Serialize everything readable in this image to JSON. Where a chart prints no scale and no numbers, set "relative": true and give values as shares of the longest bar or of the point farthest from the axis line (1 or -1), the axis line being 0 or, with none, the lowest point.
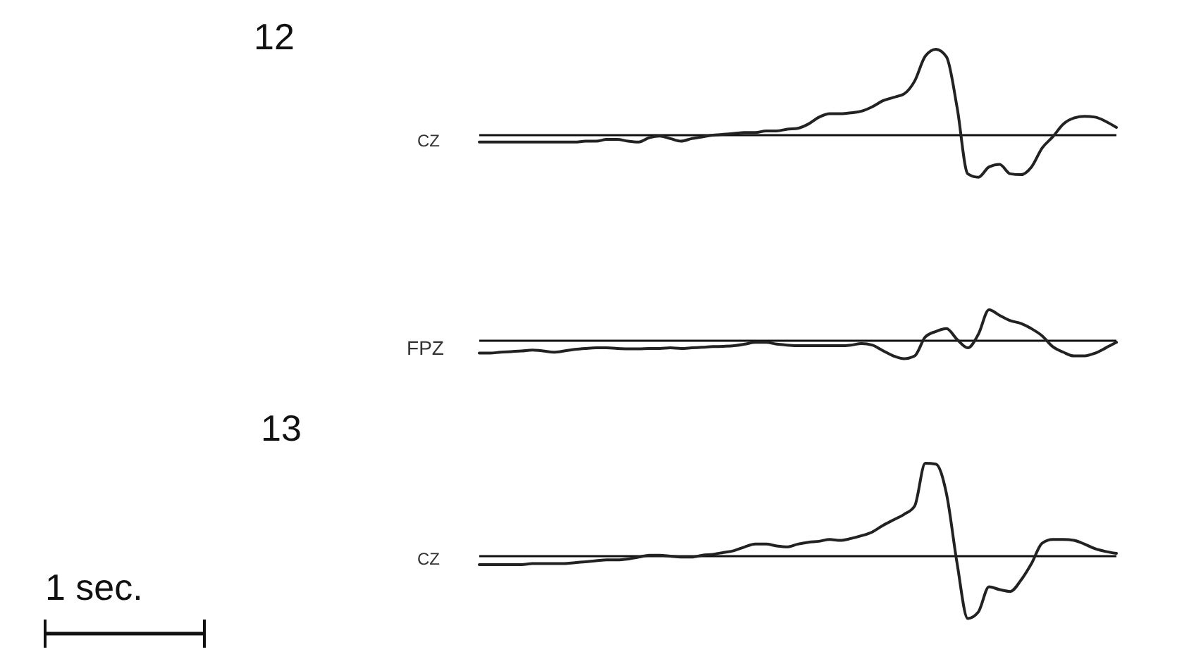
{
  "chart_data": [
    {
      "type": "line",
      "title": "12",
      "ylabel": "CZ",
      "relative": true,
      "color": "#222222",
      "categories": [
        null,
        null,
        null,
        null,
        null,
        null,
        null,
        null,
        null,
        null,
        null,
        null,
        null,
        null,
        null,
        null,
        null,
        null,
        null,
        null,
        null,
        null,
        null,
        null,
        null,
        null,
        null,
        null,
        null,
        null,
        null,
        null,
        null,
        null,
        null,
        null,
        null,
        null,
        null,
        null,
        null,
        null,
        null,
        null,
        null,
        null,
        null,
        null,
        null,
        null,
        null,
        null,
        null,
        null,
        null,
        null,
        null,
        null,
        null,
        null,
        null
      ],
      "values": [
        -0.08,
        -0.08,
        -0.08,
        -0.08,
        -0.08,
        -0.08,
        -0.08,
        -0.08,
        -0.08,
        -0.08,
        -0.07,
        -0.07,
        -0.05,
        -0.05,
        -0.07,
        -0.08,
        -0.03,
        -0.01,
        -0.04,
        -0.07,
        -0.04,
        -0.02,
        0,
        0.01,
        0.02,
        0.03,
        0.03,
        0.05,
        0.05,
        0.07,
        0.08,
        0.13,
        0.21,
        0.25,
        0.25,
        0.26,
        0.28,
        0.33,
        0.4,
        0.44,
        0.48,
        0.63,
        0.92,
        1,
        0.91,
        0.32,
        -0.45,
        -0.49,
        -0.37,
        -0.34,
        -0.45,
        -0.46,
        -0.37,
        -0.15,
        -0.02,
        0.13,
        0.2,
        0.22,
        0.21,
        0.16,
        0.09
      ]
    },
    {
      "type": "line",
      "ylabel": "FPZ",
      "relative": true,
      "color": "#222222",
      "categories": [
        null,
        null,
        null,
        null,
        null,
        null,
        null,
        null,
        null,
        null,
        null,
        null,
        null,
        null,
        null,
        null,
        null,
        null,
        null,
        null,
        null,
        null,
        null,
        null,
        null,
        null,
        null,
        null,
        null,
        null,
        null,
        null,
        null,
        null,
        null,
        null,
        null,
        null,
        null,
        null,
        null,
        null,
        null,
        null,
        null,
        null,
        null,
        null,
        null,
        null,
        null,
        null,
        null,
        null,
        null,
        null,
        null,
        null,
        null,
        null,
        null
      ],
      "values": [
        -0.4,
        -0.4,
        -0.37,
        -0.35,
        -0.33,
        -0.3,
        -0.33,
        -0.37,
        -0.33,
        -0.28,
        -0.25,
        -0.23,
        -0.23,
        -0.25,
        -0.26,
        -0.26,
        -0.25,
        -0.25,
        -0.23,
        -0.25,
        -0.23,
        -0.21,
        -0.19,
        -0.18,
        -0.16,
        -0.11,
        -0.05,
        -0.05,
        -0.11,
        -0.14,
        -0.16,
        -0.16,
        -0.16,
        -0.16,
        -0.16,
        -0.14,
        -0.09,
        -0.14,
        -0.32,
        -0.49,
        -0.58,
        -0.49,
        0.12,
        0.3,
        0.39,
        0.04,
        -0.23,
        0.21,
        1,
        0.82,
        0.65,
        0.56,
        0.39,
        0.16,
        -0.19,
        -0.37,
        -0.49,
        -0.49,
        -0.4,
        -0.23,
        -0.05
      ]
    },
    {
      "type": "line",
      "title": "13",
      "ylabel": "CZ",
      "relative": true,
      "color": "#222222",
      "annotations": [
        "1 sec."
      ],
      "categories": [
        null,
        null,
        null,
        null,
        null,
        null,
        null,
        null,
        null,
        null,
        null,
        null,
        null,
        null,
        null,
        null,
        null,
        null,
        null,
        null,
        null,
        null,
        null,
        null,
        null,
        null,
        null,
        null,
        null,
        null,
        null,
        null,
        null,
        null,
        null,
        null,
        null,
        null,
        null,
        null,
        null,
        null,
        null,
        null,
        null,
        null,
        null,
        null,
        null,
        null,
        null,
        null,
        null,
        null,
        null,
        null,
        null,
        null,
        null,
        null,
        null
      ],
      "values": [
        -0.09,
        -0.09,
        -0.09,
        -0.09,
        -0.09,
        -0.08,
        -0.08,
        -0.08,
        -0.08,
        -0.07,
        -0.06,
        -0.05,
        -0.04,
        -0.04,
        -0.03,
        -0.01,
        0.01,
        0.01,
        0,
        -0.01,
        -0.01,
        0.01,
        0.02,
        0.04,
        0.06,
        0.1,
        0.13,
        0.13,
        0.11,
        0.1,
        0.13,
        0.15,
        0.16,
        0.18,
        0.17,
        0.19,
        0.22,
        0.26,
        0.33,
        0.39,
        0.45,
        0.54,
        1,
        0.99,
        0.67,
        -0.08,
        -0.67,
        -0.6,
        -0.33,
        -0.36,
        -0.38,
        -0.26,
        -0.08,
        0.14,
        0.18,
        0.18,
        0.17,
        0.13,
        0.08,
        0.05,
        0.03
      ]
    }
  ]
}
